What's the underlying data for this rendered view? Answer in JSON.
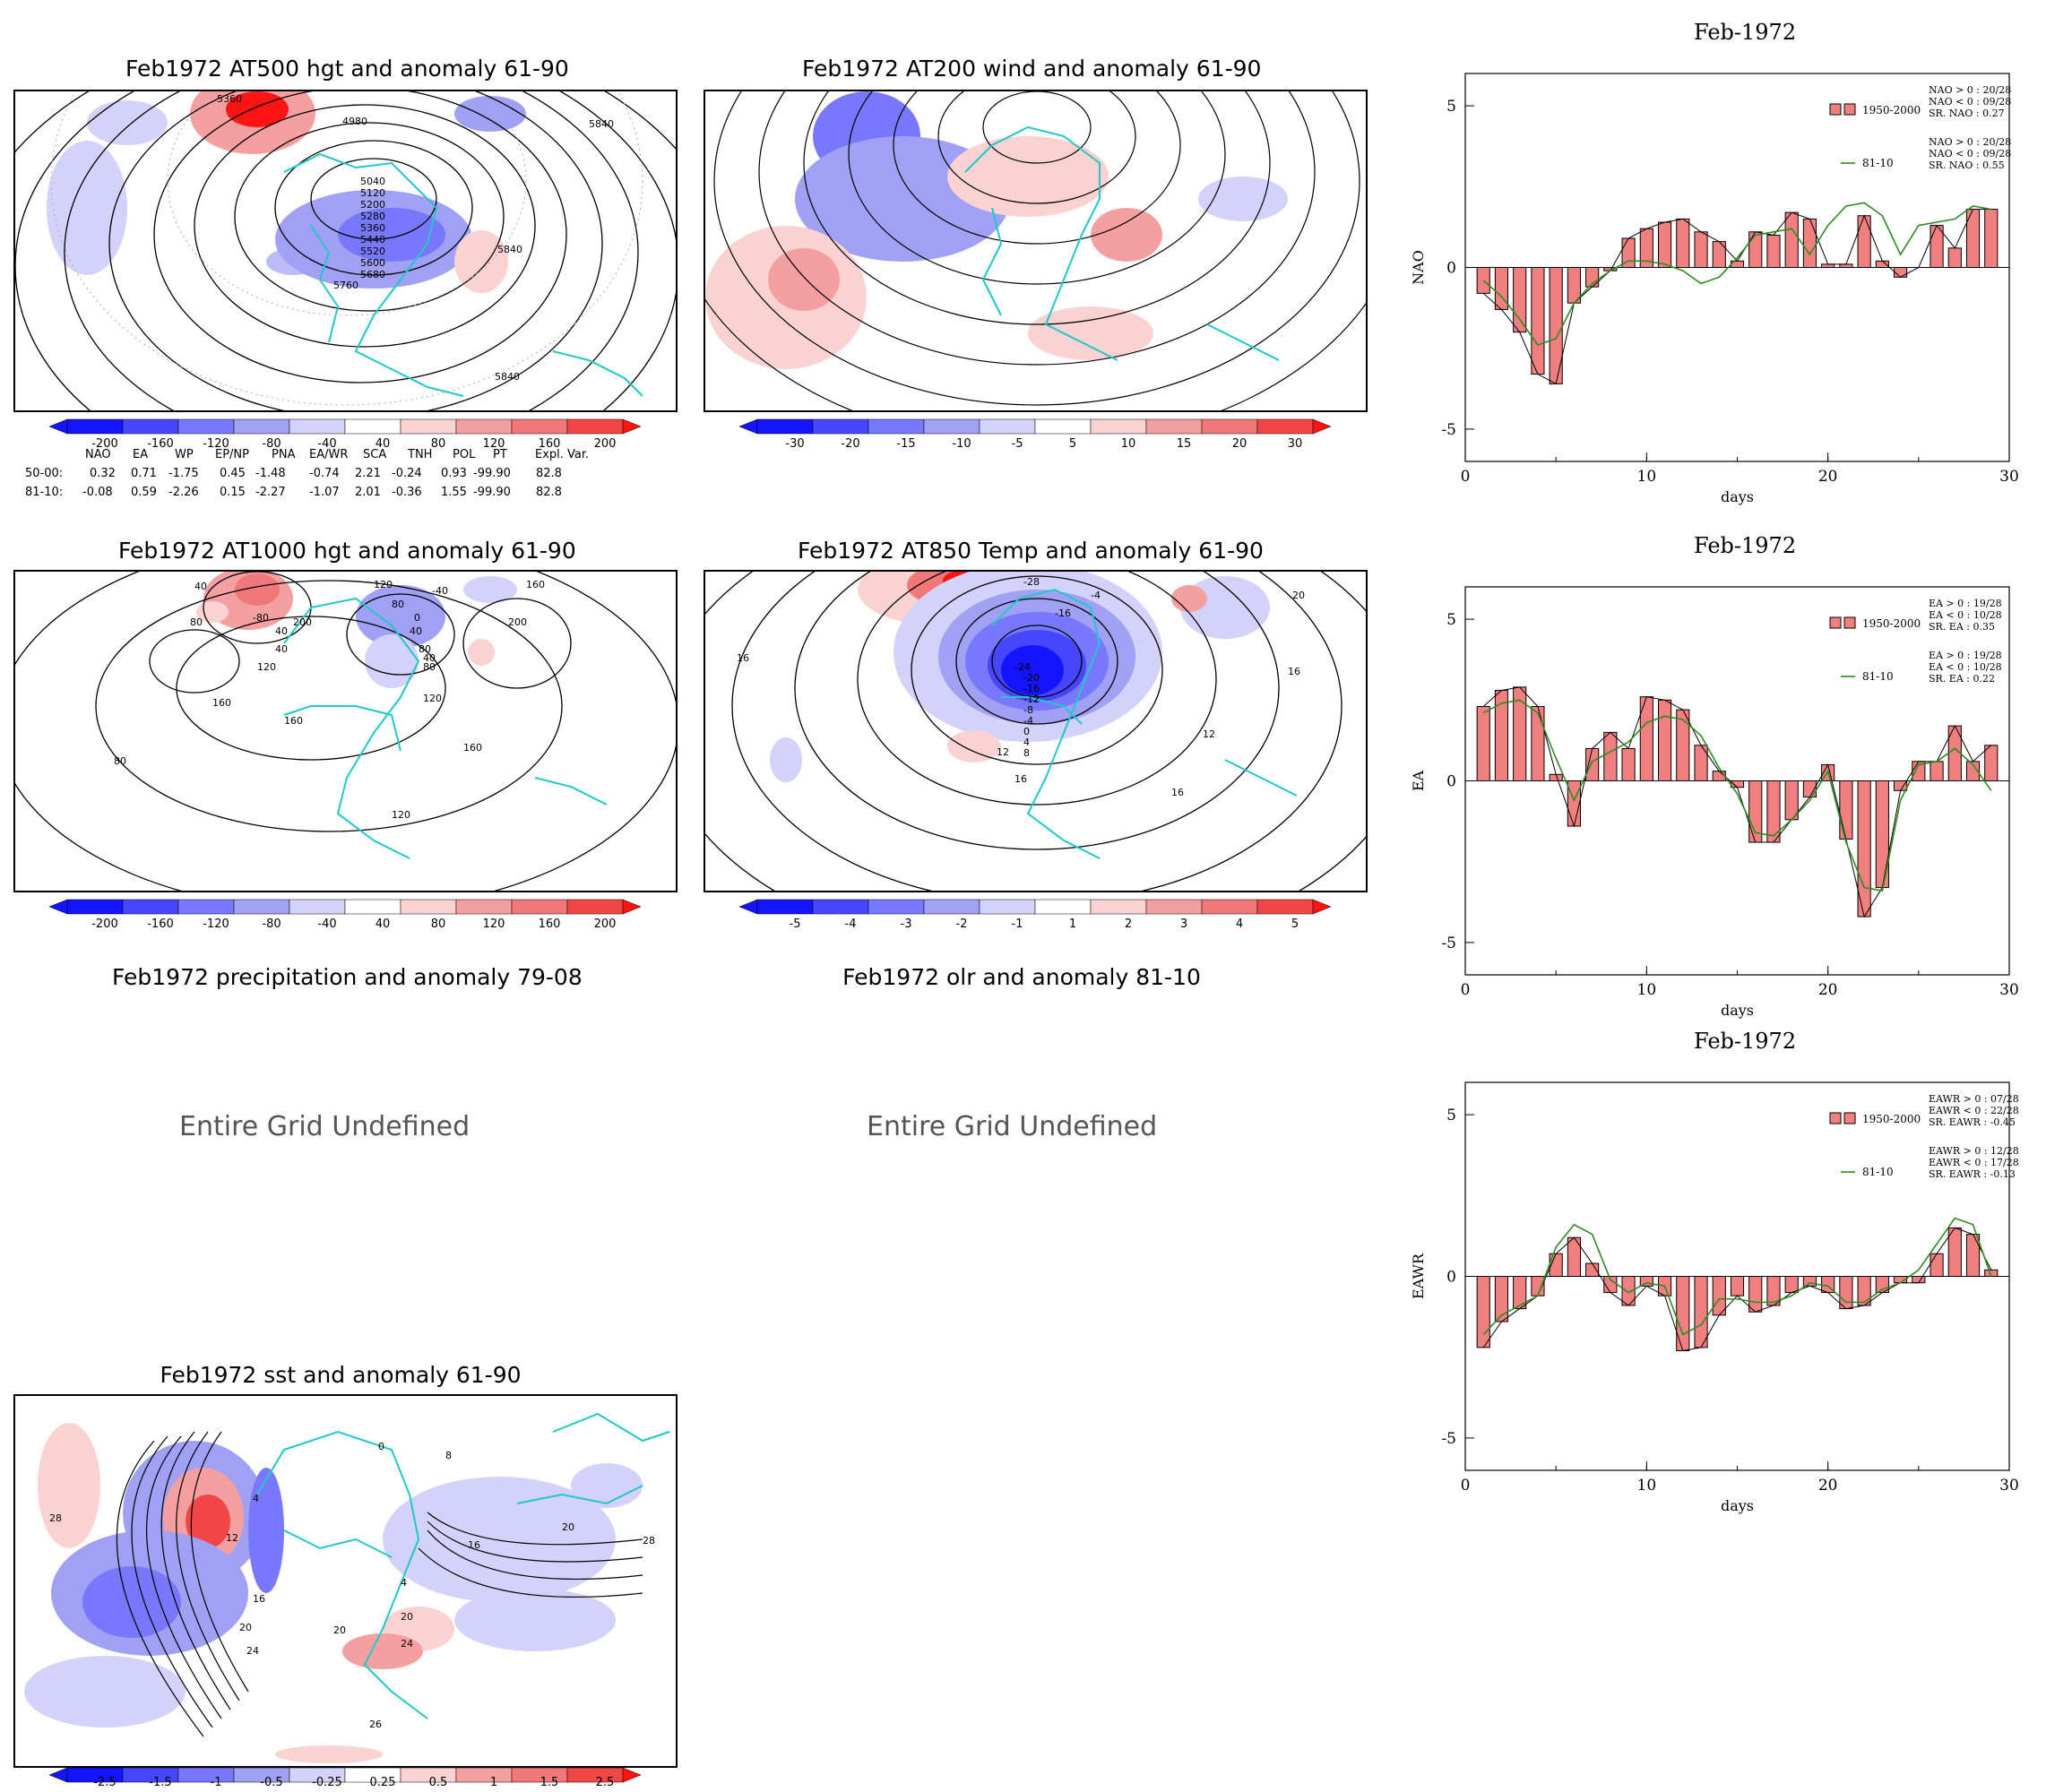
{
  "maps": [
    {
      "id": "m500",
      "title": "Feb1972 AT500 hgt and anomaly 61-90",
      "contour_labels": [
        "5360",
        "4980",
        "5040",
        "5120",
        "5200",
        "5280",
        "5360",
        "5440",
        "5520",
        "5600",
        "5680",
        "5760",
        "5840",
        "5840",
        "5840"
      ],
      "cbar": [
        "-200",
        "-160",
        "-120",
        "-80",
        "-40",
        "40",
        "80",
        "120",
        "160",
        "200"
      ]
    },
    {
      "id": "m200",
      "title": "Feb1972 AT200 wind and anomaly 61-90",
      "contour_labels": [],
      "cbar": [
        "-30",
        "-20",
        "-15",
        "-10",
        "-5",
        "5",
        "10",
        "15",
        "20",
        "30"
      ]
    },
    {
      "id": "m1000",
      "title": "Feb1972 AT1000 hgt and anomaly 61-90",
      "contour_labels": [
        "40",
        "80",
        "-80",
        "40",
        "120",
        "200",
        "40",
        "80",
        "120",
        "160",
        "40",
        "80",
        "0",
        "-40",
        "160",
        "200",
        "40",
        "80",
        "120",
        "160",
        "80",
        "160",
        "120"
      ],
      "cbar": [
        "-200",
        "-160",
        "-120",
        "-80",
        "-40",
        "40",
        "80",
        "120",
        "160",
        "200"
      ]
    },
    {
      "id": "m850",
      "title": "Feb1972 AT850 Temp and anomaly 61-90",
      "contour_labels": [
        "-28",
        "-4",
        "20",
        "-16",
        "16",
        "-24",
        "-20",
        "-16",
        "-12",
        "-8",
        "-4",
        "0",
        "4",
        "8",
        "12",
        "16",
        "16",
        "16",
        "12"
      ],
      "cbar": [
        "-5",
        "-4",
        "-3",
        "-2",
        "-1",
        "1",
        "2",
        "3",
        "4",
        "5"
      ]
    },
    {
      "id": "msst",
      "title": "Feb1972 sst and anomaly 61-90",
      "contour_labels": [
        "28",
        "4",
        "12",
        "16",
        "20",
        "24",
        "0",
        "8",
        "16",
        "20",
        "28",
        "4",
        "20",
        "24",
        "26",
        "20"
      ],
      "cbar": [
        "-2.5",
        "-1.5",
        "-1",
        "-0.5",
        "-0.25",
        "0.25",
        "0.5",
        "1",
        "1.5",
        "2.5"
      ]
    }
  ],
  "undefined_panels": [
    {
      "title": "Feb1972 precipitation and anomaly 79-08",
      "message": "Entire Grid Undefined"
    },
    {
      "title": "Feb1972 olr and anomaly 81-10",
      "message": "Entire Grid Undefined"
    }
  ],
  "index_table": {
    "headers": [
      "NAO",
      "EA",
      "WP",
      "EP/NP",
      "PNA",
      "EA/WR",
      "SCA",
      "TNH",
      "POL",
      "PT",
      "Expl. Var."
    ],
    "rows": [
      {
        "label": "50-00:",
        "values": [
          "0.32",
          "0.71",
          "-1.75",
          "0.45",
          "-1.48",
          "-0.74",
          "2.21",
          "-0.24",
          "0.93",
          "-99.90",
          "82.8"
        ]
      },
      {
        "label": "81-10:",
        "values": [
          "-0.08",
          "0.59",
          "-2.26",
          "0.15",
          "-2.27",
          "-1.07",
          "2.01",
          "-0.36",
          "1.55",
          "-99.90",
          "82.8"
        ]
      }
    ]
  },
  "colors": {
    "bar_fill": "#f08080",
    "line": "#2e8b22",
    "neg_scale": [
      "#1414ff",
      "#4646ff",
      "#7878ff",
      "#a0a0f5",
      "#d2d2fa"
    ],
    "pos_scale": [
      "#fad2d2",
      "#f5a0a0",
      "#f07878",
      "#f04646",
      "#ff1414"
    ]
  },
  "chart_data": [
    {
      "type": "bar",
      "title": "Feb-1972",
      "xlabel": "days",
      "ylabel": "NAO",
      "xlim": [
        0,
        30
      ],
      "ylim": [
        -6,
        6
      ],
      "xticks": [
        "0",
        "10",
        "20",
        "30"
      ],
      "yticks": [
        "5",
        "0",
        "-5"
      ],
      "legend_stats": [
        "NAO > 0 : 20/28",
        "NAO < 0 : 09/28",
        "SR. NAO : 0.27",
        "NAO > 0 : 20/28",
        "NAO < 0 : 09/28",
        "SR. NAO : 0.55"
      ],
      "series": [
        {
          "name": "1950-2000",
          "kind": "bar",
          "x": [
            1,
            2,
            3,
            4,
            5,
            6,
            7,
            8,
            9,
            10,
            11,
            12,
            13,
            14,
            15,
            16,
            17,
            18,
            19,
            20,
            21,
            22,
            23,
            24,
            25,
            26,
            27,
            28,
            29
          ],
          "values": [
            -0.8,
            -1.3,
            -2.0,
            -3.3,
            -3.6,
            -1.1,
            -0.6,
            -0.1,
            0.9,
            1.2,
            1.4,
            1.5,
            1.1,
            0.8,
            0.2,
            1.1,
            1.0,
            1.7,
            1.5,
            0.1,
            0.1,
            1.6,
            0.2,
            -0.3,
            0.0,
            1.3,
            0.6,
            1.8,
            1.8
          ]
        },
        {
          "name": "81-10",
          "kind": "line",
          "x": [
            1,
            2,
            3,
            4,
            5,
            6,
            7,
            8,
            9,
            10,
            11,
            12,
            13,
            14,
            15,
            16,
            17,
            18,
            19,
            20,
            21,
            22,
            23,
            24,
            25,
            26,
            27,
            28,
            29
          ],
          "values": [
            -0.4,
            -0.9,
            -1.6,
            -2.4,
            -2.2,
            -1.1,
            -0.5,
            -0.1,
            0.2,
            0.2,
            0.1,
            -0.1,
            -0.5,
            -0.3,
            0.3,
            1.0,
            1.1,
            1.2,
            0.4,
            1.3,
            1.9,
            2.0,
            1.6,
            0.4,
            1.3,
            1.4,
            1.5,
            1.9,
            1.8
          ]
        }
      ]
    },
    {
      "type": "bar",
      "title": "Feb-1972",
      "xlabel": "days",
      "ylabel": "EA",
      "xlim": [
        0,
        30
      ],
      "ylim": [
        -6,
        6
      ],
      "xticks": [
        "0",
        "10",
        "20",
        "30"
      ],
      "yticks": [
        "5",
        "0",
        "-5"
      ],
      "legend_stats": [
        "EA > 0 : 19/28",
        "EA < 0 : 10/28",
        "SR. EA : 0.35",
        "EA > 0 : 19/28",
        "EA < 0 : 10/28",
        "SR. EA : 0.22"
      ],
      "series": [
        {
          "name": "1950-2000",
          "kind": "bar",
          "x": [
            1,
            2,
            3,
            4,
            5,
            6,
            7,
            8,
            9,
            10,
            11,
            12,
            13,
            14,
            15,
            16,
            17,
            18,
            19,
            20,
            21,
            22,
            23,
            24,
            25,
            26,
            27,
            28,
            29
          ],
          "values": [
            2.3,
            2.8,
            2.9,
            2.3,
            0.2,
            -1.4,
            1.0,
            1.5,
            1.0,
            2.6,
            2.5,
            2.2,
            1.1,
            0.3,
            -0.2,
            -1.9,
            -1.9,
            -1.2,
            -0.5,
            0.5,
            -1.8,
            -4.2,
            -3.3,
            -0.3,
            0.6,
            0.6,
            1.7,
            0.6,
            1.1
          ]
        },
        {
          "name": "81-10",
          "kind": "line",
          "x": [
            1,
            2,
            3,
            4,
            5,
            6,
            7,
            8,
            9,
            10,
            11,
            12,
            13,
            14,
            15,
            16,
            17,
            18,
            19,
            20,
            21,
            22,
            23,
            24,
            25,
            26,
            27,
            28,
            29
          ],
          "values": [
            2.1,
            2.4,
            2.5,
            2.1,
            0.7,
            -0.6,
            0.6,
            0.9,
            1.2,
            1.8,
            2.0,
            1.9,
            1.4,
            0.4,
            -0.4,
            -1.6,
            -1.7,
            -1.2,
            -0.6,
            0.3,
            -1.9,
            -3.3,
            -3.4,
            -0.6,
            0.5,
            0.6,
            1.0,
            0.5,
            -0.3
          ]
        }
      ]
    },
    {
      "type": "bar",
      "title": "Feb-1972",
      "xlabel": "days",
      "ylabel": "EAWR",
      "xlim": [
        0,
        30
      ],
      "ylim": [
        -6,
        6
      ],
      "xticks": [
        "0",
        "10",
        "20",
        "30"
      ],
      "yticks": [
        "5",
        "0",
        "-5"
      ],
      "legend_stats": [
        "EAWR > 0 : 07/28",
        "EAWR < 0 : 22/28",
        "SR. EAWR : -0.45",
        "EAWR > 0 : 12/28",
        "EAWR < 0 : 17/28",
        "SR. EAWR : -0.13"
      ],
      "series": [
        {
          "name": "1950-2000",
          "kind": "bar",
          "x": [
            1,
            2,
            3,
            4,
            5,
            6,
            7,
            8,
            9,
            10,
            11,
            12,
            13,
            14,
            15,
            16,
            17,
            18,
            19,
            20,
            21,
            22,
            23,
            24,
            25,
            26,
            27,
            28,
            29
          ],
          "values": [
            -2.2,
            -1.4,
            -1.0,
            -0.6,
            0.7,
            1.2,
            0.4,
            -0.5,
            -0.9,
            -0.3,
            -0.6,
            -2.3,
            -2.2,
            -1.2,
            -0.6,
            -1.1,
            -0.9,
            -0.5,
            -0.3,
            -0.5,
            -1.0,
            -0.9,
            -0.5,
            -0.2,
            -0.2,
            0.7,
            1.5,
            1.3,
            0.2
          ]
        },
        {
          "name": "81-10",
          "kind": "line",
          "x": [
            1,
            2,
            3,
            4,
            5,
            6,
            7,
            8,
            9,
            10,
            11,
            12,
            13,
            14,
            15,
            16,
            17,
            18,
            19,
            20,
            21,
            22,
            23,
            24,
            25,
            26,
            27,
            28,
            29
          ],
          "values": [
            -1.8,
            -1.2,
            -0.9,
            -0.6,
            0.9,
            1.6,
            1.3,
            -0.1,
            -0.5,
            -0.2,
            -0.3,
            -1.8,
            -1.5,
            -0.7,
            -0.7,
            -0.8,
            -0.8,
            -0.6,
            -0.2,
            -0.3,
            -0.8,
            -0.8,
            -0.4,
            -0.2,
            0.2,
            1.0,
            1.8,
            1.6,
            0.0
          ]
        }
      ]
    }
  ]
}
